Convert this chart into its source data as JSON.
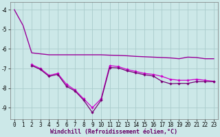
{
  "background_color": "#cce8e8",
  "grid_color": "#aacccc",
  "line_color1": "#990099",
  "line_color2": "#cc00cc",
  "line_color3": "#770077",
  "xlabel": "Windchill (Refroidissement éolien,°C)",
  "xlim": [
    -0.5,
    23.5
  ],
  "ylim": [
    -9.6,
    -3.6
  ],
  "xticks": [
    0,
    1,
    2,
    3,
    4,
    5,
    6,
    7,
    8,
    9,
    10,
    11,
    12,
    13,
    14,
    15,
    16,
    17,
    18,
    19,
    20,
    21,
    22,
    23
  ],
  "yticks": [
    -9,
    -8,
    -7,
    -6,
    -5,
    -4
  ],
  "series1_x": [
    0,
    1,
    2,
    3,
    4,
    5,
    6,
    7,
    8,
    9,
    10,
    11,
    12,
    13,
    14,
    15,
    16,
    17,
    18,
    19,
    20,
    21,
    22,
    23
  ],
  "series1_y": [
    -4.0,
    -4.8,
    -6.2,
    -6.25,
    -6.3,
    -6.3,
    -6.3,
    -6.3,
    -6.3,
    -6.3,
    -6.3,
    -6.32,
    -6.33,
    -6.35,
    -6.38,
    -6.4,
    -6.42,
    -6.44,
    -6.46,
    -6.5,
    -6.42,
    -6.44,
    -6.5,
    -6.5
  ],
  "series2_x": [
    2,
    3,
    4,
    5,
    6,
    7,
    8,
    9,
    10,
    11,
    12,
    13,
    14,
    15,
    16,
    17,
    18,
    19,
    20,
    21,
    22,
    23
  ],
  "series2_y": [
    -6.8,
    -7.0,
    -7.35,
    -7.25,
    -7.8,
    -8.1,
    -8.55,
    -9.0,
    -8.55,
    -6.85,
    -6.9,
    -7.05,
    -7.15,
    -7.25,
    -7.3,
    -7.4,
    -7.55,
    -7.6,
    -7.6,
    -7.55,
    -7.6,
    -7.65
  ],
  "series3_x": [
    2,
    3,
    4,
    5,
    6,
    7,
    8,
    9,
    10,
    11,
    12,
    13,
    14,
    15,
    16,
    17,
    18,
    19,
    20,
    21,
    22,
    23
  ],
  "series3_y": [
    -6.85,
    -7.05,
    -7.4,
    -7.3,
    -7.9,
    -8.15,
    -8.62,
    -9.25,
    -8.62,
    -6.95,
    -6.97,
    -7.12,
    -7.22,
    -7.32,
    -7.38,
    -7.65,
    -7.78,
    -7.76,
    -7.76,
    -7.67,
    -7.67,
    -7.67
  ]
}
